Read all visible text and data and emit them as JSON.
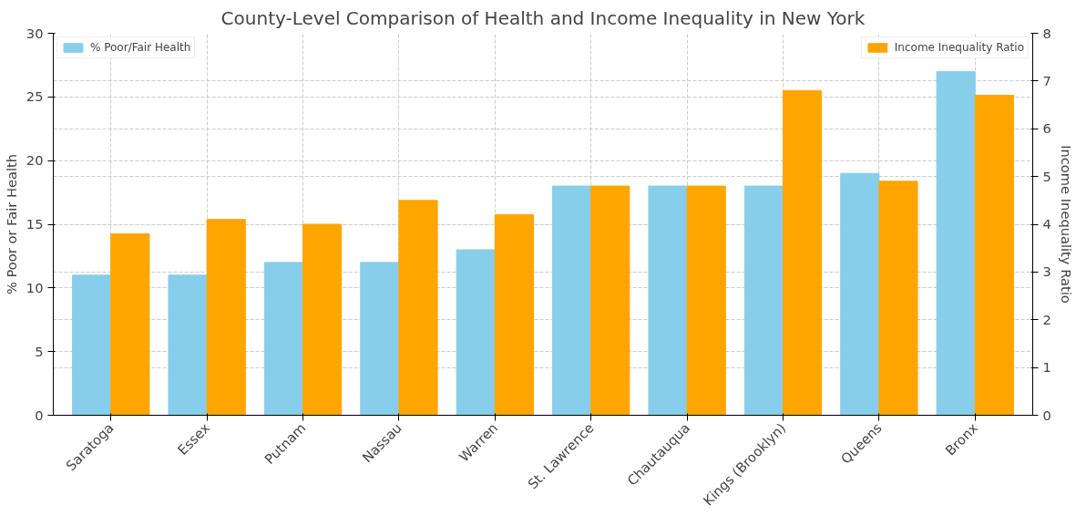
{
  "chart_data": {
    "type": "bar",
    "title": "County-Level Comparison of Health and Income Inequality in New York",
    "categories": [
      "Saratoga",
      "Essex",
      "Putnam",
      "Nassau",
      "Warren",
      "St. Lawrence",
      "Chautauqua",
      "Kings (Brooklyn)",
      "Queens",
      "Bronx"
    ],
    "series": [
      {
        "name": "% Poor/Fair Health",
        "color": "#87ceeb",
        "values": [
          11,
          11,
          12,
          12,
          13,
          18,
          18,
          18,
          19,
          27
        ]
      },
      {
        "name": "Income Inequality Ratio",
        "color": "#ffa500",
        "axis": "y2",
        "values": [
          3.8,
          4.1,
          4.0,
          4.5,
          4.2,
          4.8,
          4.8,
          6.8,
          4.9,
          6.7
        ]
      }
    ],
    "ylabel": "% Poor or Fair Health",
    "y2label": "Income Inequality Ratio",
    "ylim": [
      0,
      30
    ],
    "yticks": [
      0,
      5,
      10,
      15,
      20,
      25,
      30
    ],
    "y2lim": [
      0,
      8
    ],
    "y2ticks": [
      0,
      1,
      2,
      3,
      4,
      5,
      6,
      7,
      8
    ],
    "grid": true,
    "legend": "top left"
  }
}
